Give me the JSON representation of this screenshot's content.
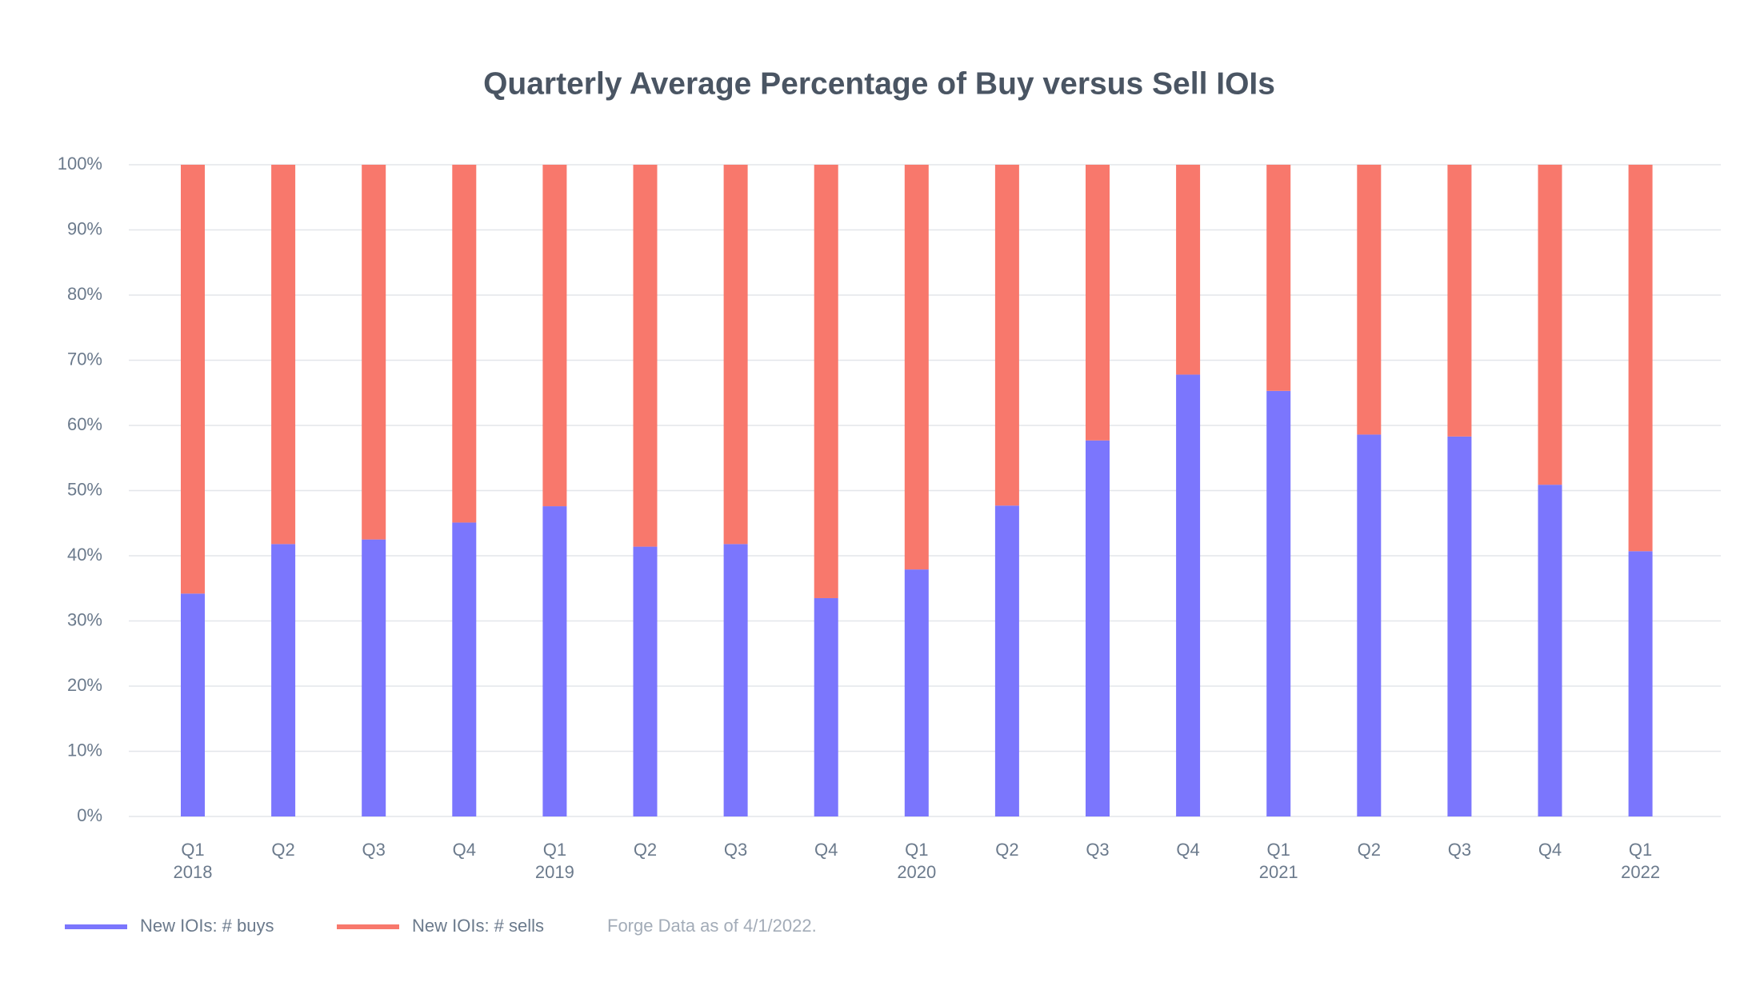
{
  "chart_data": {
    "type": "stacked_bar",
    "title": "Quarterly Average Percentage of Buy versus Sell IOIs",
    "categories": [
      "Q1",
      "Q2",
      "Q3",
      "Q4",
      "Q1",
      "Q2",
      "Q3",
      "Q4",
      "Q1",
      "Q2",
      "Q3",
      "Q4",
      "Q1",
      "Q2",
      "Q3",
      "Q4",
      "Q1"
    ],
    "years": [
      "2018",
      null,
      null,
      null,
      "2019",
      null,
      null,
      null,
      "2020",
      null,
      null,
      null,
      "2021",
      null,
      null,
      null,
      "2022"
    ],
    "series": [
      {
        "name": "New IOIs: # buys",
        "color": "#7b76fd",
        "values": [
          34.2,
          41.8,
          42.5,
          45.1,
          47.6,
          41.4,
          41.8,
          33.5,
          37.9,
          47.7,
          57.7,
          67.8,
          65.3,
          58.6,
          58.3,
          50.9,
          40.7
        ]
      },
      {
        "name": "New IOIs: # sells",
        "color": "#f8786c",
        "values": [
          65.8,
          58.2,
          57.5,
          54.9,
          52.4,
          58.6,
          58.2,
          66.5,
          62.1,
          52.3,
          42.3,
          32.2,
          34.7,
          41.4,
          41.7,
          49.1,
          59.3
        ]
      }
    ],
    "ylim": [
      0,
      100
    ],
    "yticks": [
      {
        "value": 0,
        "label": "0%"
      },
      {
        "value": 10,
        "label": "10%"
      },
      {
        "value": 20,
        "label": "20%"
      },
      {
        "value": 30,
        "label": "30%"
      },
      {
        "value": 40,
        "label": "40%"
      },
      {
        "value": 50,
        "label": "50%"
      },
      {
        "value": 60,
        "label": "60%"
      },
      {
        "value": 70,
        "label": "70%"
      },
      {
        "value": 80,
        "label": "80%"
      },
      {
        "value": 90,
        "label": "90%"
      },
      {
        "value": 100,
        "label": "100%"
      }
    ],
    "grid": true,
    "note": "Forge Data as of 4/1/2022."
  }
}
